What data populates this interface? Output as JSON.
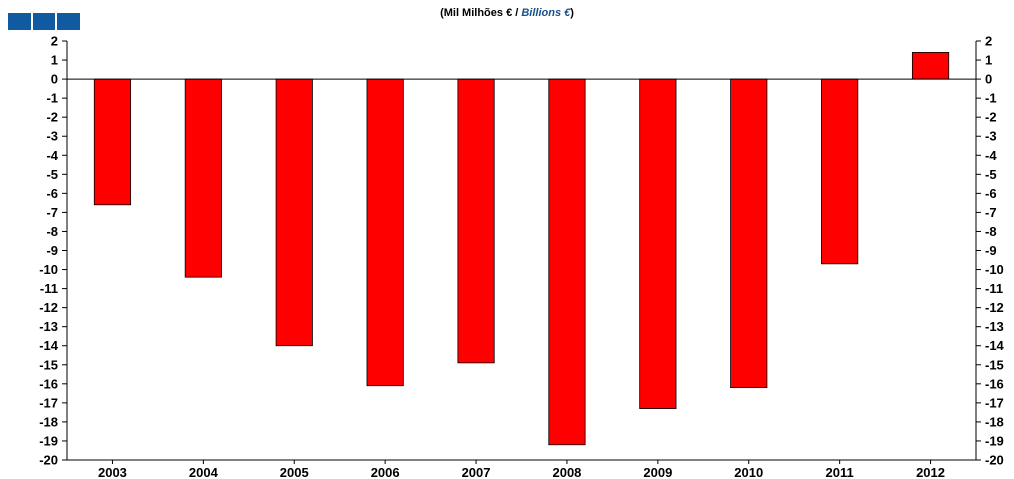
{
  "title": {
    "pt": "(Mil Milhões € / ",
    "en": "Billions €",
    "close": ")"
  },
  "colors": {
    "bar": "#ff0000",
    "logo": "#0f5aa0"
  },
  "chart_data": {
    "type": "bar",
    "categories": [
      "2003",
      "2004",
      "2005",
      "2006",
      "2007",
      "2008",
      "2009",
      "2010",
      "2011",
      "2012"
    ],
    "values": [
      -6.6,
      -10.4,
      -14.0,
      -16.1,
      -14.9,
      -19.2,
      -17.3,
      -16.2,
      -9.7,
      1.4
    ],
    "ylim": [
      -20,
      2
    ],
    "yticks": [
      2,
      1,
      0,
      -1,
      -2,
      -3,
      -4,
      -5,
      -6,
      -7,
      -8,
      -9,
      -10,
      -11,
      -12,
      -13,
      -14,
      -15,
      -16,
      -17,
      -18,
      -19,
      -20
    ],
    "ylabel": "",
    "xlabel": "",
    "grid": false,
    "dual_y_axis": true
  }
}
